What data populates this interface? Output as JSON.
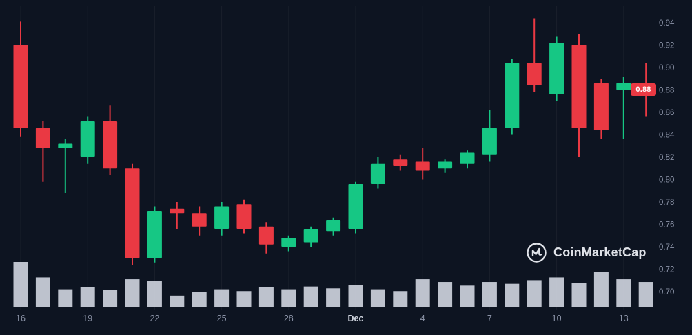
{
  "branding": {
    "logo_text": "CoinMarketCap"
  },
  "colors": {
    "background": "#0d1421",
    "up": "#16c784",
    "down": "#ea3943",
    "volume": "#ccd1dc",
    "axis_text": "#8b93a7",
    "month_tick_text": "#cfd4de",
    "grid": "rgba(255,255,255,0.05)",
    "price_line": "#ea3943",
    "price_label_bg": "#ea3943",
    "price_label_text": "#ffffff"
  },
  "chart_data": {
    "type": "candlestick",
    "title": "",
    "legend": false,
    "grid": "faint-vertical",
    "y_axis": {
      "position": "right",
      "min": 0.69,
      "max": 0.955,
      "ticks": [
        0.94,
        0.92,
        0.9,
        0.88,
        0.86,
        0.84,
        0.82,
        0.8,
        0.78,
        0.76,
        0.74,
        0.72,
        0.7
      ]
    },
    "x_axis": {
      "ticks": [
        {
          "label": "16",
          "index": 0,
          "type": "day"
        },
        {
          "label": "19",
          "index": 3,
          "type": "day"
        },
        {
          "label": "22",
          "index": 6,
          "type": "day"
        },
        {
          "label": "25",
          "index": 9,
          "type": "day"
        },
        {
          "label": "28",
          "index": 12,
          "type": "day"
        },
        {
          "label": "Dec",
          "index": 15,
          "type": "month"
        },
        {
          "label": "4",
          "index": 18,
          "type": "day"
        },
        {
          "label": "7",
          "index": 21,
          "type": "day"
        },
        {
          "label": "10",
          "index": 24,
          "type": "day"
        },
        {
          "label": "13",
          "index": 27,
          "type": "day"
        }
      ]
    },
    "price_line": {
      "value": 0.88,
      "label": "0.88"
    },
    "volume_unit": "relative-percent",
    "candles": [
      {
        "date": "Nov 16",
        "o": 0.92,
        "h": 0.941,
        "l": 0.838,
        "c": 0.846,
        "v": 100
      },
      {
        "date": "Nov 17",
        "o": 0.846,
        "h": 0.852,
        "l": 0.798,
        "c": 0.828,
        "v": 66
      },
      {
        "date": "Nov 18",
        "o": 0.828,
        "h": 0.836,
        "l": 0.788,
        "c": 0.832,
        "v": 40
      },
      {
        "date": "Nov 19",
        "o": 0.82,
        "h": 0.856,
        "l": 0.814,
        "c": 0.852,
        "v": 44
      },
      {
        "date": "Nov 20",
        "o": 0.852,
        "h": 0.866,
        "l": 0.804,
        "c": 0.81,
        "v": 38
      },
      {
        "date": "Nov 21",
        "o": 0.81,
        "h": 0.814,
        "l": 0.724,
        "c": 0.73,
        "v": 62
      },
      {
        "date": "Nov 22",
        "o": 0.73,
        "h": 0.776,
        "l": 0.726,
        "c": 0.772,
        "v": 58
      },
      {
        "date": "Nov 23",
        "o": 0.774,
        "h": 0.78,
        "l": 0.756,
        "c": 0.77,
        "v": 26
      },
      {
        "date": "Nov 24",
        "o": 0.77,
        "h": 0.776,
        "l": 0.75,
        "c": 0.758,
        "v": 34
      },
      {
        "date": "Nov 25",
        "o": 0.756,
        "h": 0.78,
        "l": 0.75,
        "c": 0.776,
        "v": 40
      },
      {
        "date": "Nov 26",
        "o": 0.778,
        "h": 0.782,
        "l": 0.752,
        "c": 0.756,
        "v": 36
      },
      {
        "date": "Nov 27",
        "o": 0.758,
        "h": 0.762,
        "l": 0.734,
        "c": 0.742,
        "v": 44
      },
      {
        "date": "Nov 28",
        "o": 0.74,
        "h": 0.75,
        "l": 0.736,
        "c": 0.748,
        "v": 40
      },
      {
        "date": "Nov 29",
        "o": 0.744,
        "h": 0.758,
        "l": 0.74,
        "c": 0.756,
        "v": 46
      },
      {
        "date": "Nov 30",
        "o": 0.754,
        "h": 0.766,
        "l": 0.75,
        "c": 0.764,
        "v": 42
      },
      {
        "date": "Dec 1",
        "o": 0.756,
        "h": 0.798,
        "l": 0.752,
        "c": 0.796,
        "v": 50
      },
      {
        "date": "Dec 2",
        "o": 0.796,
        "h": 0.82,
        "l": 0.792,
        "c": 0.814,
        "v": 40
      },
      {
        "date": "Dec 3",
        "o": 0.818,
        "h": 0.822,
        "l": 0.808,
        "c": 0.812,
        "v": 36
      },
      {
        "date": "Dec 4",
        "o": 0.816,
        "h": 0.828,
        "l": 0.8,
        "c": 0.808,
        "v": 62
      },
      {
        "date": "Dec 5",
        "o": 0.81,
        "h": 0.818,
        "l": 0.806,
        "c": 0.816,
        "v": 56
      },
      {
        "date": "Dec 6",
        "o": 0.814,
        "h": 0.826,
        "l": 0.81,
        "c": 0.824,
        "v": 48
      },
      {
        "date": "Dec 7",
        "o": 0.822,
        "h": 0.862,
        "l": 0.816,
        "c": 0.846,
        "v": 56
      },
      {
        "date": "Dec 8",
        "o": 0.846,
        "h": 0.908,
        "l": 0.84,
        "c": 0.904,
        "v": 52
      },
      {
        "date": "Dec 9",
        "o": 0.904,
        "h": 0.944,
        "l": 0.878,
        "c": 0.884,
        "v": 60
      },
      {
        "date": "Dec 10",
        "o": 0.876,
        "h": 0.928,
        "l": 0.87,
        "c": 0.922,
        "v": 66
      },
      {
        "date": "Dec 11",
        "o": 0.92,
        "h": 0.93,
        "l": 0.82,
        "c": 0.846,
        "v": 54
      },
      {
        "date": "Dec 12",
        "o": 0.886,
        "h": 0.89,
        "l": 0.836,
        "c": 0.844,
        "v": 78
      },
      {
        "date": "Dec 13",
        "o": 0.88,
        "h": 0.892,
        "l": 0.836,
        "c": 0.886,
        "v": 62
      },
      {
        "date": "Dec 14",
        "o": 0.886,
        "h": 0.904,
        "l": 0.856,
        "c": 0.878,
        "v": 56
      }
    ]
  }
}
